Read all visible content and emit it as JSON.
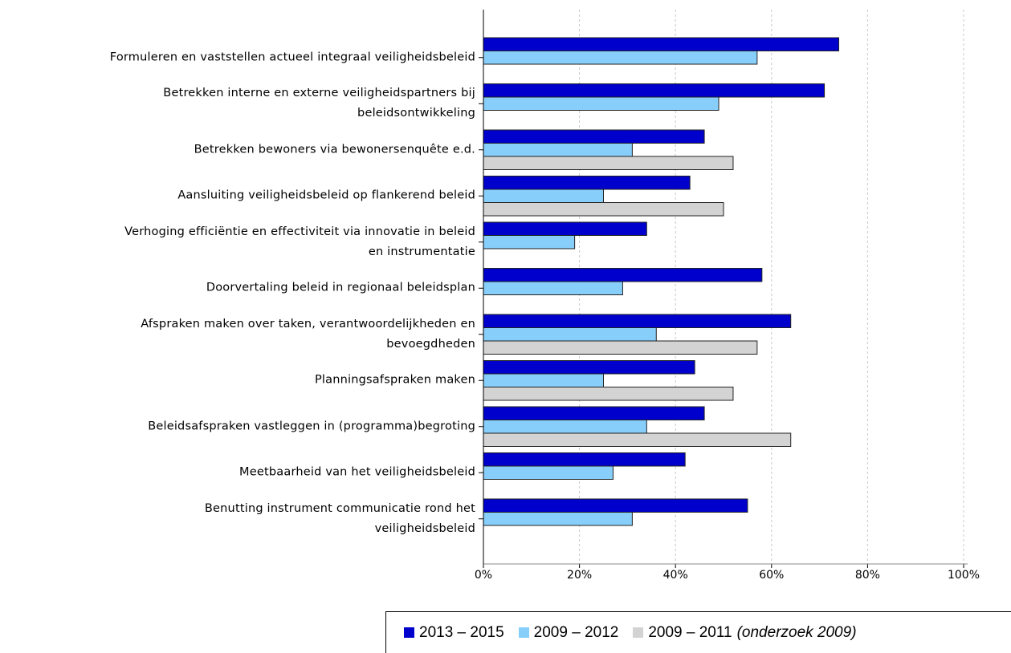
{
  "chart_data": {
    "type": "barh",
    "categories": [
      "Formuleren en vaststellen actueel integraal veiligheidsbeleid",
      "Betrekken interne en externe veiligheidspartners bij\nbeleidsontwikkeling",
      "Betrekken bewoners via bewonersenquête e.d.",
      "Aansluiting veiligheidsbeleid op flankerend beleid",
      "Verhoging efficiëntie en effectiviteit via innovatie in beleid\nen instrumentatie",
      "Doorvertaling beleid in regionaal beleidsplan",
      "Afspraken maken over taken, verantwoordelijkheden en\nbevoegdheden",
      "Planningsafspraken maken",
      "Beleidsafspraken vastleggen in (programma)begroting",
      "Meetbaarheid van het veiligheidsbeleid",
      "Benutting instrument communicatie rond het\nveiligheidsbeleid"
    ],
    "series": [
      {
        "name": "2013 – 2015",
        "color": "#0000cc",
        "values": [
          74,
          71,
          46,
          43,
          34,
          58,
          64,
          44,
          46,
          42,
          55
        ]
      },
      {
        "name": "2009 – 2012",
        "color": "#87cefa",
        "values": [
          57,
          49,
          31,
          25,
          19,
          29,
          36,
          25,
          34,
          27,
          31
        ]
      },
      {
        "name": "2009 – 2011",
        "color": "#d3d3d3",
        "values": [
          null,
          null,
          52,
          50,
          null,
          null,
          57,
          52,
          64,
          null,
          null
        ]
      }
    ],
    "legend_note": "(onderzoek 2009)",
    "xlim": [
      0,
      100
    ],
    "xticks": [
      {
        "value": 0,
        "label": "0%"
      },
      {
        "value": 20,
        "label": "20%"
      },
      {
        "value": 40,
        "label": "40%"
      },
      {
        "value": 60,
        "label": "60%"
      },
      {
        "value": 80,
        "label": "80%"
      },
      {
        "value": 100,
        "label": "100%"
      }
    ],
    "grid": true
  }
}
